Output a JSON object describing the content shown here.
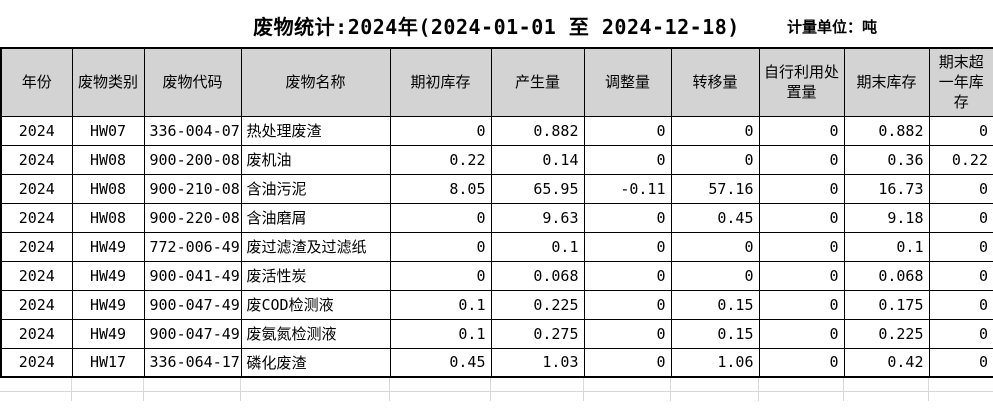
{
  "title": "废物统计:2024年(2024-01-01 至 2024-12-18)",
  "unit_label": "计量单位：吨",
  "table": {
    "columns": [
      "年份",
      "废物类别",
      "废物代码",
      "废物名称",
      "期初库存",
      "产生量",
      "调整量",
      "转移量",
      "自行利用处置量",
      "期末库存",
      "期末超一年库存"
    ],
    "rows": [
      [
        "2024",
        "HW07",
        "336-004-07",
        "热处理废渣",
        "0",
        "0.882",
        "0",
        "0",
        "0",
        "0.882",
        "0"
      ],
      [
        "2024",
        "HW08",
        "900-200-08",
        "废机油",
        "0.22",
        "0.14",
        "0",
        "0",
        "0",
        "0.36",
        "0.22"
      ],
      [
        "2024",
        "HW08",
        "900-210-08",
        "含油污泥",
        "8.05",
        "65.95",
        "-0.11",
        "57.16",
        "0",
        "16.73",
        "0"
      ],
      [
        "2024",
        "HW08",
        "900-220-08",
        "含油磨屑",
        "0",
        "9.63",
        "0",
        "0.45",
        "0",
        "9.18",
        "0"
      ],
      [
        "2024",
        "HW49",
        "772-006-49",
        "废过滤渣及过滤纸",
        "0",
        "0.1",
        "0",
        "0",
        "0",
        "0.1",
        "0"
      ],
      [
        "2024",
        "HW49",
        "900-041-49",
        "废活性炭",
        "0",
        "0.068",
        "0",
        "0",
        "0",
        "0.068",
        "0"
      ],
      [
        "2024",
        "HW49",
        "900-047-49",
        "废COD检测液",
        "0.1",
        "0.225",
        "0",
        "0.15",
        "0",
        "0.175",
        "0"
      ],
      [
        "2024",
        "HW49",
        "900-047-49",
        "废氨氮检测液",
        "0.1",
        "0.275",
        "0",
        "0.15",
        "0",
        "0.225",
        "0"
      ],
      [
        "2024",
        "HW17",
        "336-064-17",
        "磷化废渣",
        "0.45",
        "1.03",
        "0",
        "1.06",
        "0",
        "0.42",
        "0"
      ]
    ]
  },
  "colors": {
    "header_bg": "#d3d3d3",
    "table_border": "#000000",
    "ghost_grid": "#d8d8d8",
    "background": "#ffffff",
    "text": "#000000"
  }
}
